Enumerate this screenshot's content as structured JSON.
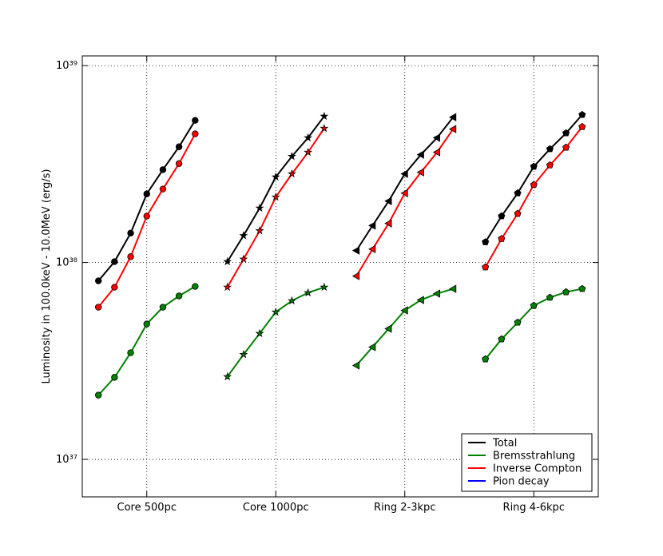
{
  "chart_data": {
    "type": "line",
    "ylabel": "Luminosity in 100.0keV - 10.0MeV (erg/s)",
    "x": [
      0.125,
      0.25,
      0.375,
      0.5,
      0.625,
      0.75,
      0.875,
      1.0,
      1.125,
      1.25,
      1.375,
      1.5,
      1.625,
      1.75,
      1.875,
      2.0,
      2.125,
      2.25,
      2.375,
      2.5,
      2.625,
      2.75,
      2.875,
      3.0,
      3.125,
      3.25,
      3.375,
      3.5,
      3.625,
      3.75,
      3.875
    ],
    "xlim": [
      0,
      4
    ],
    "xticks": [
      {
        "value": 0.5,
        "label": "Core 500pc"
      },
      {
        "value": 1.5,
        "label": "Core 1000pc"
      },
      {
        "value": 2.5,
        "label": "Ring 2-3kpc"
      },
      {
        "value": 3.5,
        "label": "Ring 4-6kpc"
      }
    ],
    "ylim": [
      6.45e+36,
      1.12e+39
    ],
    "yticks": [
      {
        "value": 1e+37,
        "label": "10³⁷"
      },
      {
        "value": 1e+38,
        "label": "10³⁸"
      },
      {
        "value": 1e+39,
        "label": "10³⁹"
      }
    ],
    "log_y": true,
    "grid": true,
    "legend": "lower right",
    "markers": [
      "circle",
      "star",
      "triangle-left",
      "pentagon"
    ],
    "series": [
      {
        "name": "Total",
        "color": "#000000",
        "values": [
          8.07e+37,
          1.01e+38,
          1.41e+38,
          2.23e+38,
          2.96e+38,
          3.87e+38,
          5.27e+38,
          null,
          1.01e+38,
          1.37e+38,
          1.89e+38,
          2.72e+38,
          3.46e+38,
          4.3e+38,
          5.53e+38,
          null,
          1.15e+38,
          1.54e+38,
          2.05e+38,
          2.82e+38,
          3.53e+38,
          4.3e+38,
          5.47e+38,
          null,
          1.27e+38,
          1.72e+38,
          2.25e+38,
          3.07e+38,
          3.77e+38,
          4.54e+38,
          5.63e+38
        ]
      },
      {
        "name": "Bremsstrahlung",
        "color": "#008000",
        "values": [
          2.12e+37,
          2.61e+37,
          3.48e+37,
          4.87e+37,
          5.93e+37,
          6.76e+37,
          7.56e+37,
          null,
          2.63e+37,
          3.41e+37,
          4.36e+37,
          5.6e+37,
          6.39e+37,
          7.02e+37,
          7.49e+37,
          null,
          3e+37,
          3.72e+37,
          4.61e+37,
          5.71e+37,
          6.45e+37,
          6.95e+37,
          7.35e+37,
          null,
          3.23e+37,
          4.08e+37,
          4.96e+37,
          6.04e+37,
          6.64e+37,
          7.08e+37,
          7.35e+37
        ]
      },
      {
        "name": "Inverse Compton",
        "color": "#ff0000",
        "values": [
          5.93e+37,
          7.49e+37,
          1.07e+38,
          1.72e+38,
          2.36e+38,
          3.18e+38,
          4.5e+38,
          null,
          7.49e+37,
          1.04e+38,
          1.45e+38,
          2.15e+38,
          2.82e+38,
          3.63e+38,
          4.8e+38,
          null,
          8.53e+37,
          1.17e+38,
          1.58e+38,
          2.25e+38,
          2.87e+38,
          3.63e+38,
          4.76e+38,
          null,
          9.46e+37,
          1.32e+38,
          1.77e+38,
          2.48e+38,
          3.12e+38,
          3.84e+38,
          4.89e+38
        ]
      },
      {
        "name": "Pion decay",
        "color": "#0000ff",
        "values": [
          null,
          null,
          null,
          null,
          null,
          null,
          null,
          null,
          null,
          null,
          null,
          null,
          null,
          null,
          null,
          null,
          null,
          null,
          null,
          null,
          null,
          null,
          null,
          null,
          null,
          null,
          null,
          null,
          null,
          null,
          null
        ]
      }
    ]
  }
}
